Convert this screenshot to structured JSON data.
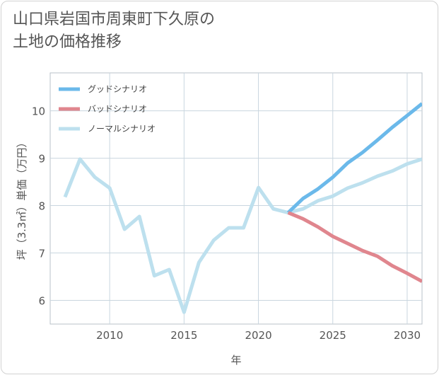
{
  "title_line1": "山口県岩国市周東町下久原の",
  "title_line2": "土地の価格推移",
  "chart_data": {
    "type": "line",
    "xlabel": "年",
    "ylabel": "坪（3.3㎡）単価（万円）",
    "xlim": [
      2006,
      2031
    ],
    "ylim": [
      5.5,
      10.8
    ],
    "x_ticks": [
      2010,
      2015,
      2020,
      2025,
      2030
    ],
    "y_ticks": [
      6,
      7,
      8,
      9,
      10
    ],
    "x_tick_labels": [
      "2010",
      "2015",
      "2020",
      "2025",
      "2030"
    ],
    "y_tick_labels": [
      "6",
      "7",
      "8",
      "9",
      "10"
    ],
    "grid": true,
    "legend_position": "top-left",
    "series": [
      {
        "name": "グッドシナリオ",
        "color": "#6bb9ea",
        "x": [
          2022,
          2023,
          2024,
          2025,
          2026,
          2027,
          2028,
          2029,
          2030,
          2031
        ],
        "y": [
          7.85,
          8.15,
          8.35,
          8.6,
          8.9,
          9.12,
          9.38,
          9.65,
          9.9,
          10.15
        ]
      },
      {
        "name": "バッドシナリオ",
        "color": "#e0868e",
        "x": [
          2022,
          2023,
          2024,
          2025,
          2026,
          2027,
          2028,
          2029,
          2030,
          2031
        ],
        "y": [
          7.85,
          7.72,
          7.55,
          7.35,
          7.2,
          7.05,
          6.93,
          6.73,
          6.57,
          6.4
        ]
      },
      {
        "name": "ノーマルシナリオ",
        "color": "#bde0ee",
        "x": [
          2007,
          2008,
          2009,
          2010,
          2011,
          2012,
          2013,
          2014,
          2015,
          2016,
          2017,
          2018,
          2019,
          2020,
          2021,
          2022,
          2023,
          2024,
          2025,
          2026,
          2027,
          2028,
          2029,
          2030,
          2031
        ],
        "y": [
          8.18,
          8.98,
          8.6,
          8.37,
          7.5,
          7.77,
          6.52,
          6.65,
          5.75,
          6.8,
          7.27,
          7.53,
          7.53,
          8.38,
          7.93,
          7.85,
          7.93,
          8.1,
          8.2,
          8.37,
          8.48,
          8.62,
          8.73,
          8.88,
          8.98
        ]
      }
    ]
  }
}
